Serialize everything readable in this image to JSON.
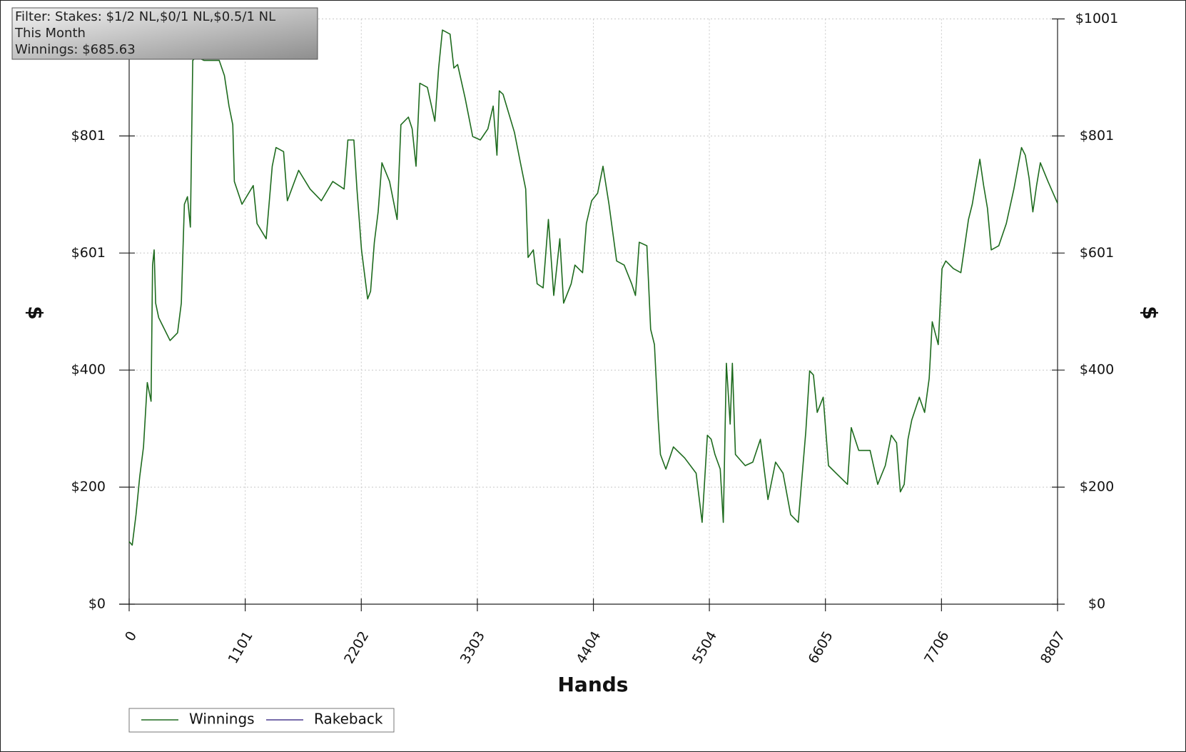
{
  "chart_data": {
    "type": "line",
    "annotation": [
      "Filter: Stakes: $1/2 NL,$0/1 NL,$0.5/1 NL",
      "This Month",
      "Winnings: $685.63"
    ],
    "xlabel": "Hands",
    "ylabel": "$",
    "y2label": "$",
    "x": [
      0,
      29,
      65,
      100,
      136,
      172,
      208,
      222,
      237,
      251,
      280,
      316,
      388,
      459,
      495,
      524,
      553,
      581,
      603,
      639,
      711,
      854,
      904,
      947,
      983,
      998,
      1070,
      1177,
      1213,
      1300,
      1357,
      1393,
      1465,
      1501,
      1608,
      1716,
      1823,
      1931,
      2039,
      2075,
      2132,
      2161,
      2204,
      2262,
      2290,
      2326,
      2362,
      2398,
      2470,
      2542,
      2578,
      2649,
      2685,
      2721,
      2757,
      2829,
      2900,
      2936,
      2972,
      3044,
      3080,
      3116,
      3188,
      3259,
      3331,
      3403,
      3453,
      3489,
      3511,
      3547,
      3655,
      3712,
      3762,
      3784,
      3834,
      3870,
      3927,
      3977,
      4028,
      4085,
      4121,
      4193,
      4229,
      4301,
      4337,
      4387,
      4444,
      4495,
      4552,
      4624,
      4696,
      4767,
      4803,
      4839,
      4911,
      4947,
      4983,
      5019,
      5040,
      5091,
      5163,
      5270,
      5378,
      5435,
      5485,
      5521,
      5557,
      5607,
      5636,
      5665,
      5701,
      5722,
      5751,
      5844,
      5916,
      5988,
      6060,
      6132,
      6203,
      6275,
      6347,
      6419,
      6455,
      6491,
      6527,
      6584,
      6634,
      6706,
      6814,
      6850,
      6921,
      7029,
      7101,
      7173,
      7230,
      7280,
      7316,
      7352,
      7388,
      7424,
      7496,
      7546,
      7589,
      7618,
      7675,
      7711,
      7747,
      7819,
      7890,
      7926,
      7962,
      7998,
      8070,
      8106,
      8142,
      8178,
      8249,
      8321,
      8393,
      8465,
      8501,
      8537,
      8573,
      8608,
      8644,
      8716,
      8807
    ],
    "series": [
      {
        "name": "Winnings",
        "color": "#1e6b1e",
        "values": [
          107,
          101,
          153,
          218,
          269,
          379,
          347,
          580,
          606,
          515,
          490,
          477,
          451,
          464,
          515,
          684,
          697,
          645,
          930,
          936,
          930,
          930,
          904,
          852,
          820,
          723,
          684,
          716,
          651,
          625,
          749,
          781,
          774,
          690,
          742,
          710,
          690,
          723,
          710,
          794,
          794,
          710,
          606,
          522,
          535,
          619,
          671,
          755,
          723,
          658,
          820,
          833,
          813,
          749,
          891,
          884,
          826,
          917,
          982,
          975,
          917,
          923,
          865,
          800,
          794,
          813,
          852,
          768,
          878,
          872,
          807,
          755,
          710,
          593,
          606,
          548,
          541,
          658,
          528,
          625,
          515,
          548,
          580,
          567,
          651,
          690,
          703,
          749,
          684,
          587,
          580,
          548,
          528,
          619,
          613,
          470,
          444,
          315,
          256,
          231,
          269,
          250,
          224,
          140,
          289,
          282,
          256,
          231,
          140,
          412,
          308,
          412,
          256,
          237,
          243,
          282,
          179,
          243,
          224,
          153,
          140,
          295,
          399,
          392,
          328,
          354,
          237,
          224,
          205,
          302,
          263,
          263,
          205,
          237,
          289,
          276,
          192,
          205,
          282,
          315,
          354,
          328,
          386,
          483,
          444,
          574,
          587,
          574,
          567,
          613,
          658,
          684,
          761,
          716,
          677,
          606,
          613,
          651,
          710,
          781,
          768,
          729,
          671,
          716,
          755,
          723,
          685.63
        ]
      },
      {
        "name": "Rakeback",
        "color": "#4b3d8f",
        "values": [
          null,
          null,
          null,
          null,
          null,
          null,
          null,
          null,
          null,
          null,
          null,
          null,
          null,
          null,
          null,
          null,
          null,
          null,
          null,
          null,
          null,
          null,
          null,
          null,
          null,
          null,
          null,
          null,
          null,
          null,
          null,
          null,
          null,
          null,
          null,
          null,
          null,
          null,
          null,
          null,
          null,
          null,
          null,
          null,
          null,
          null,
          null,
          null,
          null,
          null,
          null,
          null,
          null,
          null,
          null,
          null,
          null,
          null,
          null,
          null,
          null,
          null,
          null,
          null,
          null,
          null,
          null,
          null,
          null,
          null,
          null,
          null,
          null,
          null,
          null,
          null,
          null,
          null,
          null,
          null,
          null,
          null,
          null,
          null,
          null,
          null,
          null,
          null,
          null,
          null,
          null,
          null,
          null,
          null,
          null,
          null,
          null,
          null,
          null,
          null,
          null,
          null,
          null,
          null,
          null,
          null,
          null,
          null,
          null,
          null,
          null,
          null,
          null,
          null,
          null,
          null,
          null,
          null,
          null,
          null,
          null,
          null,
          null,
          null,
          null,
          null,
          null,
          null,
          null,
          null,
          null,
          null,
          null,
          null,
          null,
          null,
          null,
          null,
          null,
          null,
          null,
          null,
          null,
          null,
          null,
          null,
          null,
          null,
          null,
          null,
          null,
          null,
          null,
          null,
          null,
          null,
          null,
          null,
          null,
          null,
          null,
          null,
          null,
          null,
          null,
          null,
          null
        ]
      }
    ],
    "xlim": [
      0,
      8807
    ],
    "xticks": [
      0,
      1101,
      2202,
      3303,
      4404,
      5504,
      6605,
      7706,
      8807
    ],
    "ylim": [
      0,
      1001
    ],
    "yticks": [
      {
        "value": 0,
        "label": "$0"
      },
      {
        "value": 200.2,
        "label": "$200"
      },
      {
        "value": 400.4,
        "label": "$400"
      },
      {
        "value": 600.6,
        "label": "$601"
      },
      {
        "value": 800.8,
        "label": "$801"
      },
      {
        "value": 1001,
        "label": "$1001"
      }
    ],
    "y2lim": [
      0,
      1001
    ],
    "y2ticks": [
      {
        "value": 0,
        "label": "$0"
      },
      {
        "value": 200.2,
        "label": "$200"
      },
      {
        "value": 400.4,
        "label": "$400"
      },
      {
        "value": 600.6,
        "label": "$601"
      },
      {
        "value": 800.8,
        "label": "$801"
      },
      {
        "value": 1001,
        "label": "$1001"
      }
    ],
    "grid": true,
    "legend": "bottom-left"
  }
}
